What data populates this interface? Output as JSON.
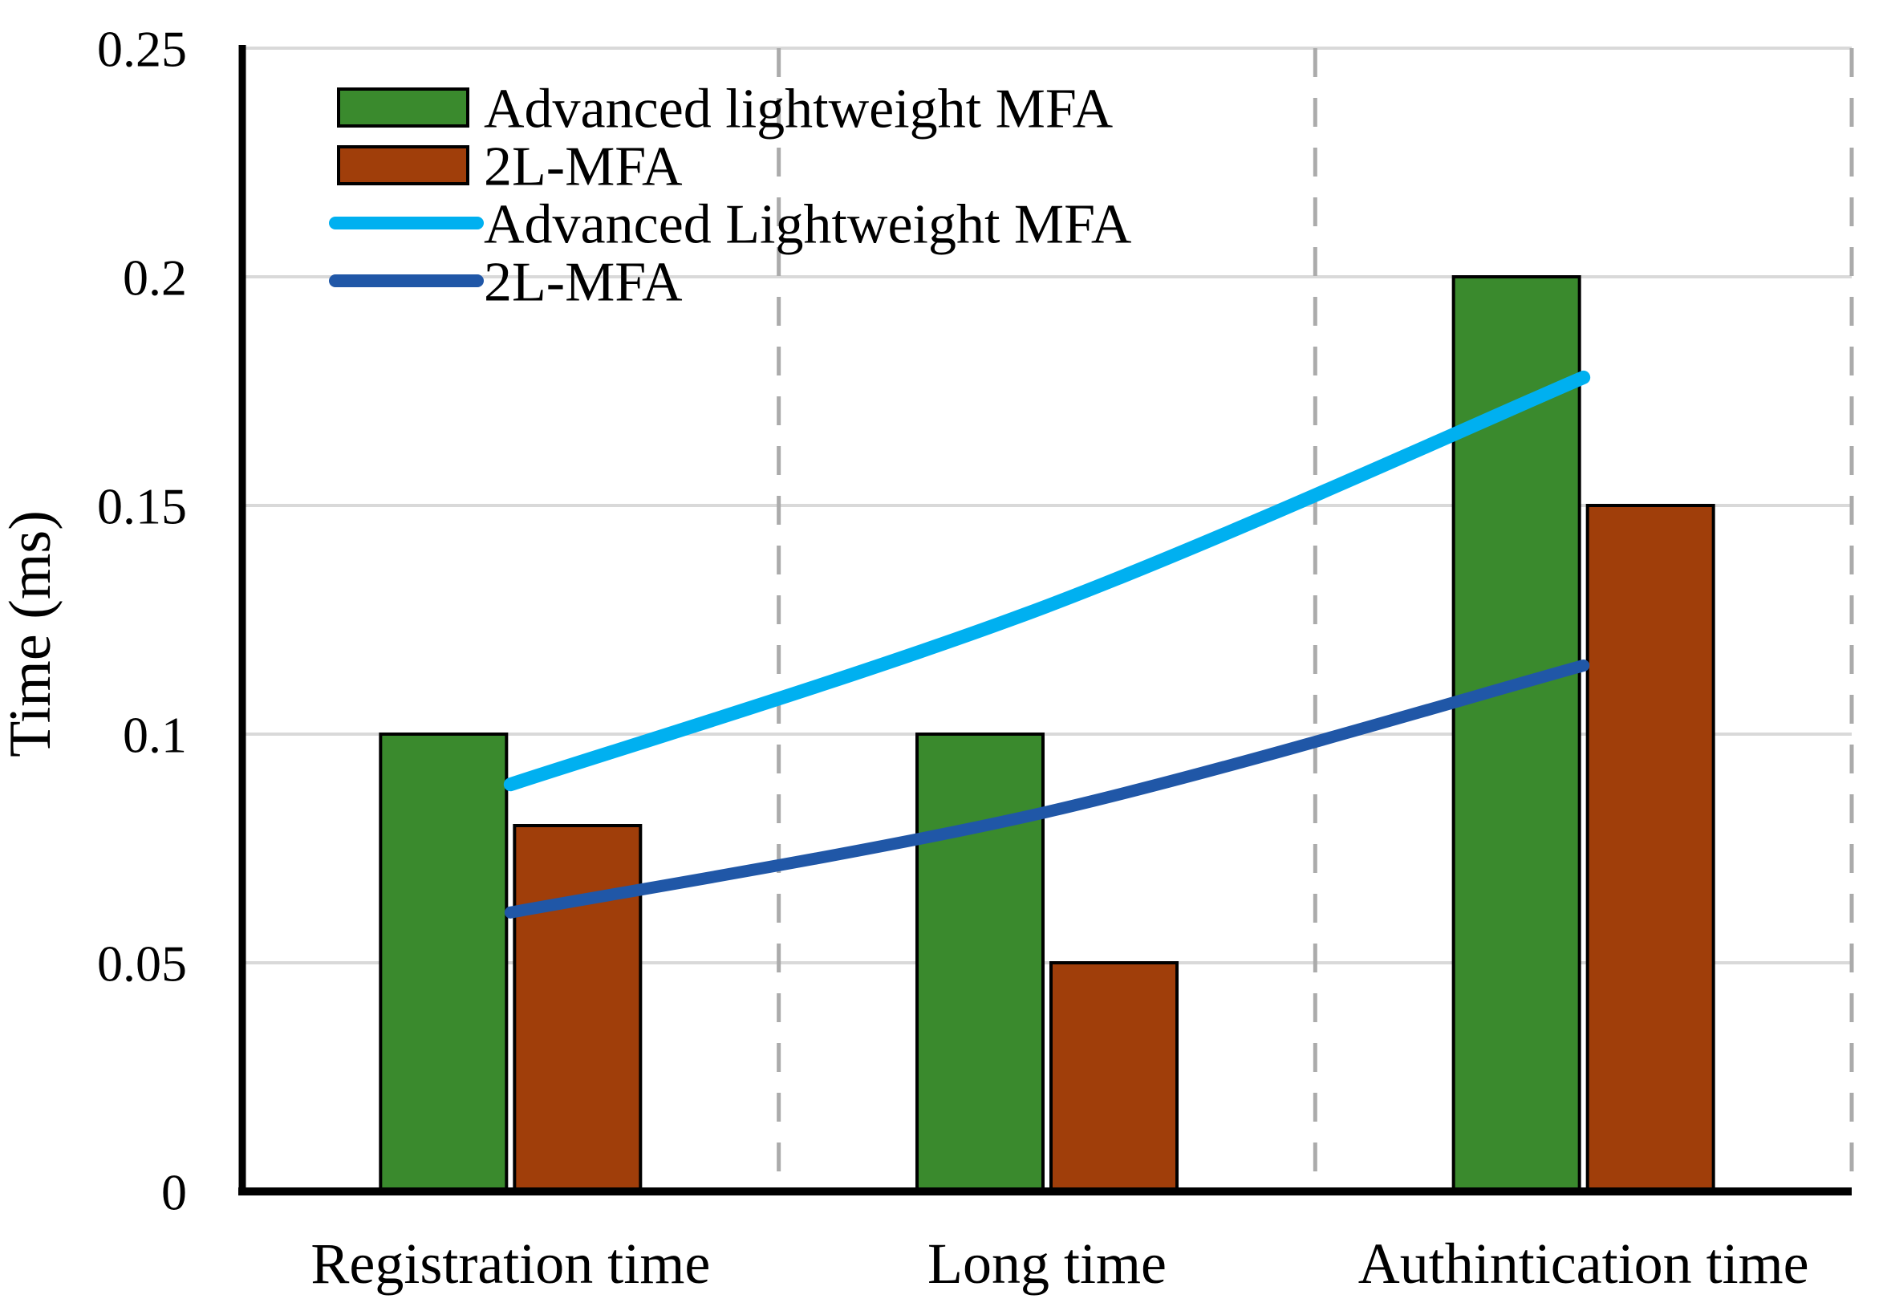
{
  "chart_data": {
    "type": "combo-bar-line",
    "title": "",
    "xlabel": "",
    "ylabel": "Time (ms)",
    "categories": [
      "Registration time",
      "Long time",
      "Authintication time"
    ],
    "y_axis": {
      "min": 0,
      "max": 0.25,
      "tick_step": 0.05,
      "tick_values": [
        0,
        0.05,
        0.1,
        0.15,
        0.2,
        0.25
      ],
      "tick_labels": [
        "0",
        "0.05",
        "0.1",
        "0.15",
        "0.2",
        "0.25"
      ]
    },
    "bar_series": [
      {
        "name": "Advanced lightweight MFA",
        "color": "#3A8A2D",
        "values": [
          0.1,
          0.1,
          0.2
        ]
      },
      {
        "name": "2L-MFA",
        "color": "#A03E0A",
        "values": [
          0.08,
          0.05,
          0.15
        ]
      }
    ],
    "line_series": [
      {
        "name": "Advanced Lightweight MFA",
        "color": "#00B0F0",
        "values": [
          0.089,
          0.128,
          0.178
        ],
        "smooth": true
      },
      {
        "name": "2L-MFA",
        "color": "#2057A7",
        "values": [
          0.061,
          0.083,
          0.115
        ],
        "smooth": true
      }
    ],
    "legend": {
      "position": "top-left-inside",
      "entries": [
        {
          "label": "Advanced lightweight MFA",
          "marker": "rect",
          "color": "#3A8A2D"
        },
        {
          "label": "2L-MFA",
          "marker": "rect",
          "color": "#A03E0A"
        },
        {
          "label": "Advanced Lightweight MFA",
          "marker": "line",
          "color": "#00B0F0"
        },
        {
          "label": "2L-MFA",
          "marker": "line",
          "color": "#2057A7"
        }
      ]
    },
    "grid": {
      "horizontal_gridlines": true,
      "gridline_color": "#D9D9D9",
      "vertical_separator_style": "dashed",
      "separator_color": "#ABABAB"
    },
    "axis_color": "#000000",
    "bar_border_color": "#000000",
    "background_color": "#ffffff",
    "ylim": [
      0,
      0.25
    ]
  }
}
